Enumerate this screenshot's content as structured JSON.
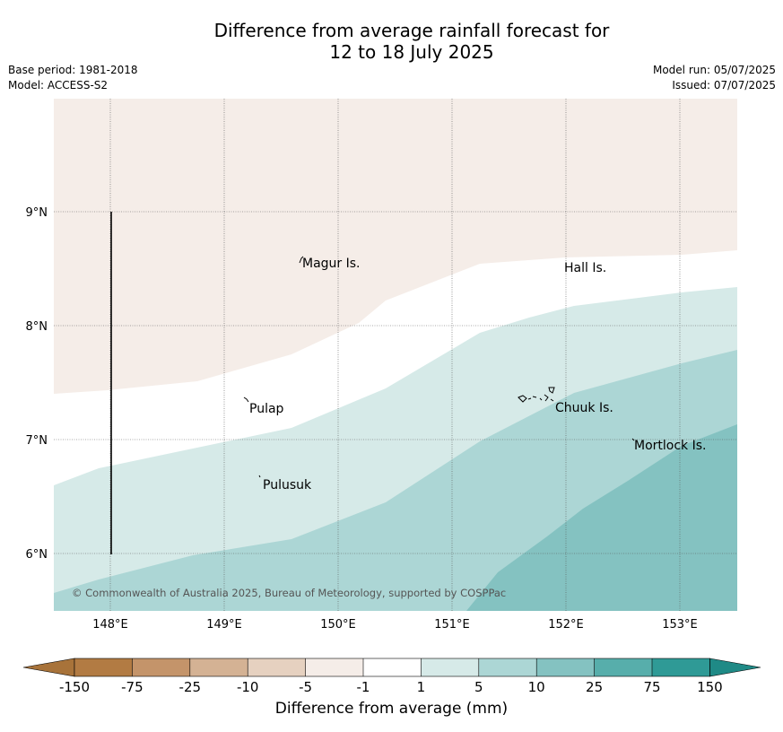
{
  "title": {
    "line1": "Difference from average rainfall forecast for",
    "line2": "12 to 18 July 2025"
  },
  "meta": {
    "base_period": "Base period: 1981-2018",
    "model": "Model: ACCESS-S2",
    "model_run": "Model run: 05/07/2025",
    "issued": "Issued: 07/07/2025"
  },
  "map": {
    "lon_range": [
      147.5,
      153.5
    ],
    "lat_range": [
      5.5,
      10.0
    ],
    "lon_ticks": [
      "148°E",
      "149°E",
      "150°E",
      "151°E",
      "152°E",
      "153°E"
    ],
    "lat_ticks": [
      "9°N",
      "8°N",
      "7°N",
      "6°N"
    ],
    "grid": true,
    "copyright": "© Commonwealth of Australia 2025, Bureau of Meteorology, supported by COSPPac",
    "places": [
      {
        "name": "Magur Is.",
        "lon": 149.7,
        "lat": 8.55
      },
      {
        "name": "Hall Is.",
        "lon": 151.97,
        "lat": 8.5
      },
      {
        "name": "Pulap",
        "lon": 149.2,
        "lat": 7.25
      },
      {
        "name": "Chuuk Is.",
        "lon": 151.88,
        "lat": 7.28
      },
      {
        "name": "Mortlock Is.",
        "lon": 152.6,
        "lat": 6.95
      },
      {
        "name": "Pulusuk",
        "lon": 149.33,
        "lat": 6.6
      }
    ]
  },
  "legend": {
    "title": "Difference from average (mm)",
    "labels": [
      "-150",
      "-75",
      "-25",
      "-10",
      "-5",
      "-1",
      "1",
      "5",
      "10",
      "25",
      "75",
      "150"
    ],
    "colors": [
      "#a8733a",
      "#b27b43",
      "#c4946a",
      "#d4b294",
      "#e6d1c0",
      "#f5ede8",
      "#ffffff",
      "#d6eae8",
      "#acd6d5",
      "#84c2c1",
      "#57aeab",
      "#2f9a96",
      "#1f8a86"
    ]
  }
}
